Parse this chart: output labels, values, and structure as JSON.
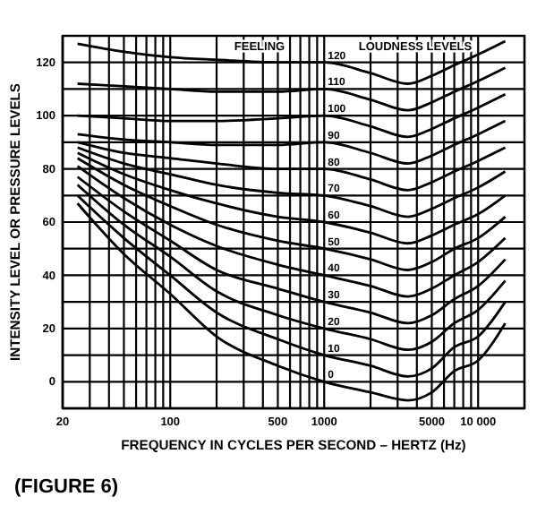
{
  "chart_data": {
    "type": "line",
    "xlabel": "FREQUENCY IN CYCLES PER SECOND – HERTZ (Hz)",
    "ylabel": "INTENSITY LEVEL OR PRESSURE LEVELS",
    "annotations": [
      "FEELING",
      "LOUDNESS LEVELS",
      "(FIGURE 6)"
    ],
    "log": "x",
    "grid": true,
    "legend": false,
    "marker": "none",
    "line_style": "solid",
    "x": [
      25,
      50,
      100,
      200,
      500,
      1000,
      2000,
      3500,
      5000,
      7000,
      10000,
      15000
    ],
    "xlim": [
      20,
      20000
    ],
    "xticks": [
      20,
      {
        "value": 30,
        "label": null
      },
      {
        "value": 40,
        "label": null
      },
      {
        "value": 50,
        "label": null
      },
      {
        "value": 60,
        "label": null
      },
      {
        "value": 70,
        "label": null
      },
      {
        "value": 80,
        "label": null
      },
      {
        "value": 90,
        "label": null
      },
      100,
      {
        "value": 200,
        "label": null
      },
      {
        "value": 300,
        "label": null
      },
      {
        "value": 400,
        "label": null
      },
      500,
      {
        "value": 600,
        "label": null
      },
      {
        "value": 700,
        "label": null
      },
      {
        "value": 800,
        "label": null
      },
      {
        "value": 900,
        "label": null
      },
      1000,
      {
        "value": 2000,
        "label": null
      },
      {
        "value": 3000,
        "label": null
      },
      {
        "value": 4000,
        "label": null
      },
      5000,
      {
        "value": 6000,
        "label": null
      },
      {
        "value": 7000,
        "label": null
      },
      {
        "value": 8000,
        "label": null
      },
      {
        "value": 9000,
        "label": null
      },
      {
        "value": 10000,
        "label": "10 000"
      },
      {
        "value": 20000,
        "label": null
      }
    ],
    "ylim": [
      -10,
      130
    ],
    "yticks": [
      0,
      {
        "value": 10,
        "label": null
      },
      20,
      {
        "value": 30,
        "label": null
      },
      40,
      {
        "value": 50,
        "label": null
      },
      60,
      {
        "value": 70,
        "label": null
      },
      80,
      {
        "value": 90,
        "label": null
      },
      100,
      {
        "value": 110,
        "label": null
      },
      120
    ],
    "series": [
      {
        "name": "0",
        "color": "#000000",
        "values": [
          67,
          48,
          33,
          17,
          6,
          0,
          -4,
          -7,
          -4,
          4,
          8,
          22
        ]
      },
      {
        "name": "10",
        "color": "#000000",
        "values": [
          70,
          54,
          40,
          26,
          16,
          10,
          6,
          2,
          5,
          13,
          17,
          30
        ]
      },
      {
        "name": "20",
        "color": "#000000",
        "values": [
          74,
          59,
          47,
          34,
          25,
          20,
          16,
          12,
          15,
          22,
          27,
          38
        ]
      },
      {
        "name": "30",
        "color": "#000000",
        "values": [
          77,
          64,
          53,
          42,
          35,
          30,
          26,
          22,
          25,
          31,
          36,
          46
        ]
      },
      {
        "name": "40",
        "color": "#000000",
        "values": [
          81,
          69,
          59,
          51,
          44,
          40,
          36,
          32,
          35,
          40,
          45,
          54
        ]
      },
      {
        "name": "50",
        "color": "#000000",
        "values": [
          84,
          74,
          66,
          59,
          53,
          50,
          46,
          42,
          45,
          50,
          54,
          62
        ]
      },
      {
        "name": "60",
        "color": "#000000",
        "values": [
          86,
          78,
          72,
          67,
          62,
          60,
          56,
          52,
          55,
          59,
          63,
          70
        ]
      },
      {
        "name": "70",
        "color": "#000000",
        "values": [
          88,
          82,
          78,
          74,
          71,
          70,
          66,
          62,
          65,
          69,
          73,
          79
        ]
      },
      {
        "name": "80",
        "color": "#000000",
        "values": [
          90,
          86,
          84,
          82,
          80,
          80,
          76,
          72,
          75,
          79,
          83,
          88
        ]
      },
      {
        "name": "90",
        "color": "#000000",
        "values": [
          93,
          91,
          90,
          89,
          89,
          90,
          86,
          82,
          85,
          89,
          93,
          98
        ]
      },
      {
        "name": "100",
        "color": "#000000",
        "values": [
          100,
          99,
          98,
          98,
          99,
          100,
          96,
          92,
          95,
          99,
          103,
          108
        ]
      },
      {
        "name": "110",
        "color": "#000000",
        "values": [
          112,
          111,
          110,
          109,
          109,
          110,
          106,
          102,
          105,
          109,
          113,
          118
        ]
      },
      {
        "name": "120",
        "color": "#000000",
        "values": [
          127,
          124,
          122,
          121,
          120,
          120,
          116,
          112,
          115,
          119,
          123,
          128
        ]
      }
    ]
  }
}
